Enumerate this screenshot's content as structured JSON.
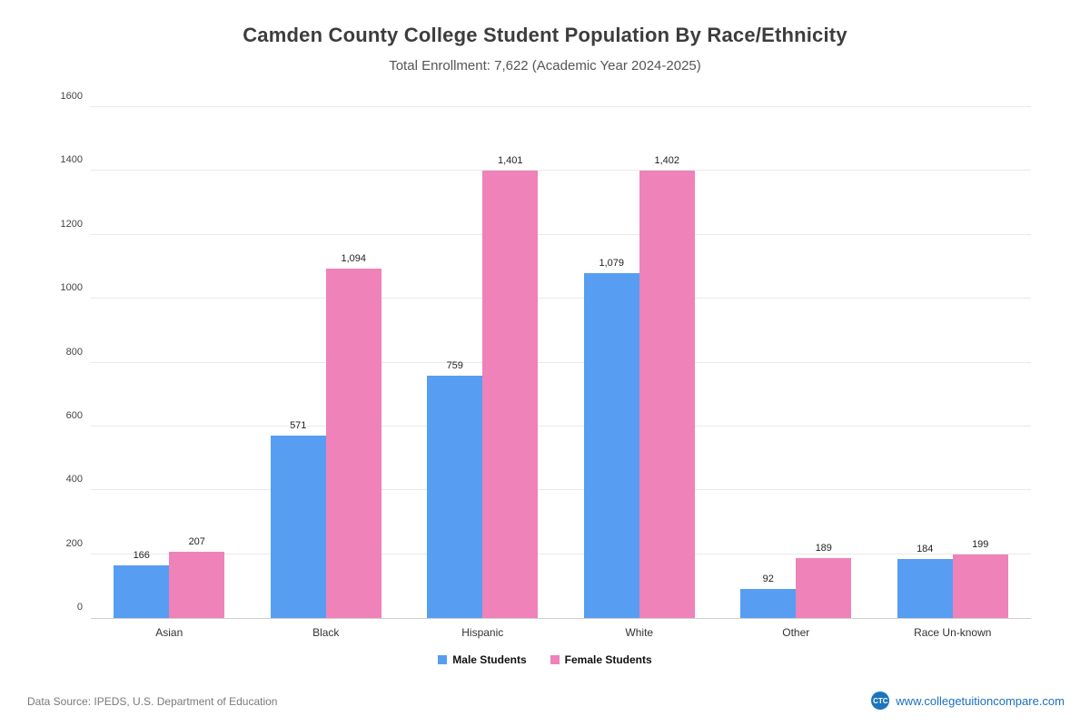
{
  "header": {
    "title": "Camden County College Student Population By Race/Ethnicity",
    "subtitle": "Total Enrollment: 7,622 (Academic Year 2024-2025)"
  },
  "chart_data": {
    "type": "bar",
    "title": "Camden County College Student Population By Race/Ethnicity",
    "categories": [
      "Asian",
      "Black",
      "Hispanic",
      "White",
      "Other",
      "Race Un-known"
    ],
    "series": [
      {
        "name": "Male Students",
        "color": "#579df1",
        "values": [
          166,
          571,
          759,
          1079,
          92,
          184
        ]
      },
      {
        "name": "Female Students",
        "color": "#ef82b9",
        "values": [
          207,
          1094,
          1401,
          1402,
          189,
          199
        ]
      }
    ],
    "ylim": [
      0,
      1600
    ],
    "ytick_step": 200,
    "grid": "horizontal",
    "legend_position": "bottom",
    "xlabel": "",
    "ylabel": ""
  },
  "footer": {
    "source": "Data Source: IPEDS, U.S. Department of Education",
    "logo_text": "CTC",
    "site": "www.collegetuitioncompare.com"
  }
}
